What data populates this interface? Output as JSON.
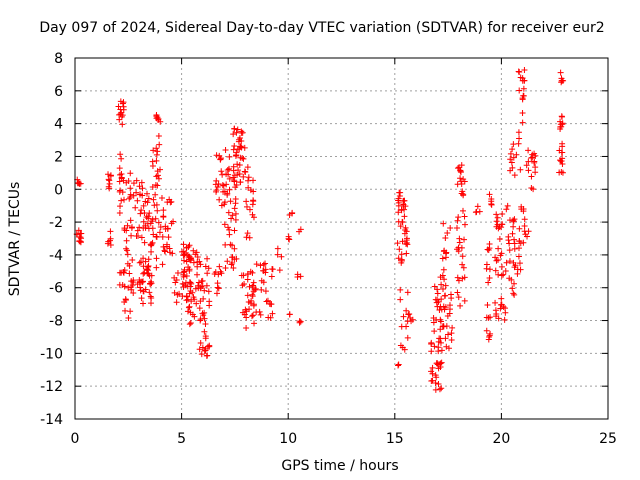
{
  "chart_data": {
    "type": "scatter",
    "title": "Day 097 of 2024, Sidereal Day-to-day VTEC variation (SDTVAR) for receiver eur2",
    "xlabel": "GPS time / hours",
    "ylabel": "SDTVAR / TECUs",
    "xlim": [
      0,
      25
    ],
    "ylim": [
      -14,
      8
    ],
    "xticks": [
      0,
      5,
      10,
      15,
      20,
      25
    ],
    "yticks": [
      -14,
      -12,
      -10,
      -8,
      -6,
      -4,
      -2,
      0,
      2,
      4,
      6,
      8
    ],
    "grid": true,
    "marker": "+",
    "color": "#ff0000",
    "clusters": [
      {
        "t0": 0.05,
        "t1": 0.3,
        "v0": -3.3,
        "v1": -2.5,
        "n": 12
      },
      {
        "t0": 0.1,
        "t1": 0.3,
        "v0": 0.2,
        "v1": 0.6,
        "n": 6
      },
      {
        "t0": 1.5,
        "t1": 1.7,
        "v0": 0.0,
        "v1": 1.2,
        "n": 8
      },
      {
        "t0": 1.5,
        "t1": 1.7,
        "v0": -3.4,
        "v1": -2.0,
        "n": 6
      },
      {
        "t0": 2.0,
        "t1": 2.3,
        "v0": 3.8,
        "v1": 5.4,
        "n": 14
      },
      {
        "t0": 2.0,
        "t1": 2.3,
        "v0": -1.5,
        "v1": 2.5,
        "n": 16
      },
      {
        "t0": 2.0,
        "t1": 2.3,
        "v0": -6.0,
        "v1": -5.0,
        "n": 6
      },
      {
        "t0": 2.3,
        "t1": 2.6,
        "v0": -8.0,
        "v1": -2.0,
        "n": 20
      },
      {
        "t0": 2.4,
        "t1": 3.2,
        "v0": -3.0,
        "v1": 1.0,
        "n": 30
      },
      {
        "t0": 2.6,
        "t1": 3.6,
        "v0": -7.0,
        "v1": -4.0,
        "n": 45
      },
      {
        "t0": 3.2,
        "t1": 4.2,
        "v0": -5.0,
        "v1": 0.0,
        "n": 45
      },
      {
        "t0": 3.6,
        "t1": 4.0,
        "v0": 0.0,
        "v1": 2.5,
        "n": 14
      },
      {
        "t0": 3.8,
        "t1": 4.0,
        "v0": 2.5,
        "v1": 4.8,
        "n": 10
      },
      {
        "t0": 4.0,
        "t1": 4.6,
        "v0": -4.0,
        "v1": -0.5,
        "n": 22
      },
      {
        "t0": 4.6,
        "t1": 5.0,
        "v0": -7.0,
        "v1": -5.0,
        "n": 8
      },
      {
        "t0": 5.0,
        "t1": 5.8,
        "v0": -7.0,
        "v1": -3.3,
        "n": 60
      },
      {
        "t0": 5.2,
        "t1": 5.6,
        "v0": -8.3,
        "v1": -7.0,
        "n": 8
      },
      {
        "t0": 5.8,
        "t1": 6.3,
        "v0": -10.3,
        "v1": -6.0,
        "n": 30
      },
      {
        "t0": 5.8,
        "t1": 6.3,
        "v0": -6.0,
        "v1": -4.2,
        "n": 12
      },
      {
        "t0": 6.5,
        "t1": 6.9,
        "v0": -6.5,
        "v1": -4.5,
        "n": 10
      },
      {
        "t0": 6.6,
        "t1": 7.6,
        "v0": -1.0,
        "v1": 2.5,
        "n": 40
      },
      {
        "t0": 7.0,
        "t1": 7.6,
        "v0": -5.0,
        "v1": -1.0,
        "n": 24
      },
      {
        "t0": 7.4,
        "t1": 8.0,
        "v0": 0.0,
        "v1": 3.7,
        "n": 40
      },
      {
        "t0": 7.8,
        "t1": 8.4,
        "v0": -9.0,
        "v1": -5.0,
        "n": 25
      },
      {
        "t0": 8.0,
        "t1": 8.4,
        "v0": -3.0,
        "v1": 1.5,
        "n": 18
      },
      {
        "t0": 8.3,
        "t1": 9.3,
        "v0": -8.0,
        "v1": -4.5,
        "n": 35
      },
      {
        "t0": 9.4,
        "t1": 9.7,
        "v0": -5.0,
        "v1": -3.5,
        "n": 4
      },
      {
        "t0": 10.0,
        "t1": 10.2,
        "v0": -1.6,
        "v1": -1.4,
        "n": 3
      },
      {
        "t0": 10.0,
        "t1": 10.2,
        "v0": -3.3,
        "v1": -2.8,
        "n": 3
      },
      {
        "t0": 10.0,
        "t1": 10.2,
        "v0": -7.8,
        "v1": -7.6,
        "n": 2
      },
      {
        "t0": 10.4,
        "t1": 10.6,
        "v0": -8.4,
        "v1": -8.0,
        "n": 3
      },
      {
        "t0": 10.4,
        "t1": 10.6,
        "v0": -5.4,
        "v1": -5.0,
        "n": 3
      },
      {
        "t0": 10.4,
        "t1": 10.6,
        "v0": -2.6,
        "v1": -2.4,
        "n": 2
      },
      {
        "t0": 15.1,
        "t1": 15.6,
        "v0": -4.5,
        "v1": 0.0,
        "n": 40
      },
      {
        "t0": 15.2,
        "t1": 15.7,
        "v0": -9.8,
        "v1": -6.0,
        "n": 14
      },
      {
        "t0": 15.05,
        "t1": 15.2,
        "v0": -10.8,
        "v1": -10.6,
        "n": 2
      },
      {
        "t0": 15.7,
        "t1": 15.9,
        "v0": -8.2,
        "v1": -7.6,
        "n": 3
      },
      {
        "t0": 16.7,
        "t1": 17.2,
        "v0": -12.5,
        "v1": -9.0,
        "n": 30
      },
      {
        "t0": 16.8,
        "t1": 17.2,
        "v0": -9.0,
        "v1": -5.0,
        "n": 20
      },
      {
        "t0": 17.2,
        "t1": 17.7,
        "v0": -10.0,
        "v1": -2.0,
        "n": 40
      },
      {
        "t0": 17.9,
        "t1": 18.3,
        "v0": -7.5,
        "v1": 1.5,
        "n": 40
      },
      {
        "t0": 18.8,
        "t1": 19.0,
        "v0": -2.8,
        "v1": -1.0,
        "n": 4
      },
      {
        "t0": 19.3,
        "t1": 19.5,
        "v0": -9.3,
        "v1": -3.0,
        "n": 18
      },
      {
        "t0": 19.4,
        "t1": 19.6,
        "v0": -1.0,
        "v1": 0.4,
        "n": 5
      },
      {
        "t0": 19.7,
        "t1": 20.4,
        "v0": -8.0,
        "v1": -1.0,
        "n": 45
      },
      {
        "t0": 20.4,
        "t1": 20.8,
        "v0": -6.5,
        "v1": -1.5,
        "n": 20
      },
      {
        "t0": 20.4,
        "t1": 20.9,
        "v0": 0.5,
        "v1": 3.0,
        "n": 12
      },
      {
        "t0": 20.8,
        "t1": 21.1,
        "v0": -5.0,
        "v1": -1.0,
        "n": 16
      },
      {
        "t0": 20.8,
        "t1": 21.1,
        "v0": 3.0,
        "v1": 7.4,
        "n": 18
      },
      {
        "t0": 21.1,
        "t1": 21.6,
        "v0": 0.0,
        "v1": 2.5,
        "n": 16
      },
      {
        "t0": 21.1,
        "t1": 21.4,
        "v0": -3.0,
        "v1": -2.5,
        "n": 3
      },
      {
        "t0": 22.7,
        "t1": 22.9,
        "v0": 0.8,
        "v1": 4.5,
        "n": 22
      },
      {
        "t0": 22.7,
        "t1": 22.9,
        "v0": 6.5,
        "v1": 7.2,
        "n": 6
      }
    ]
  }
}
